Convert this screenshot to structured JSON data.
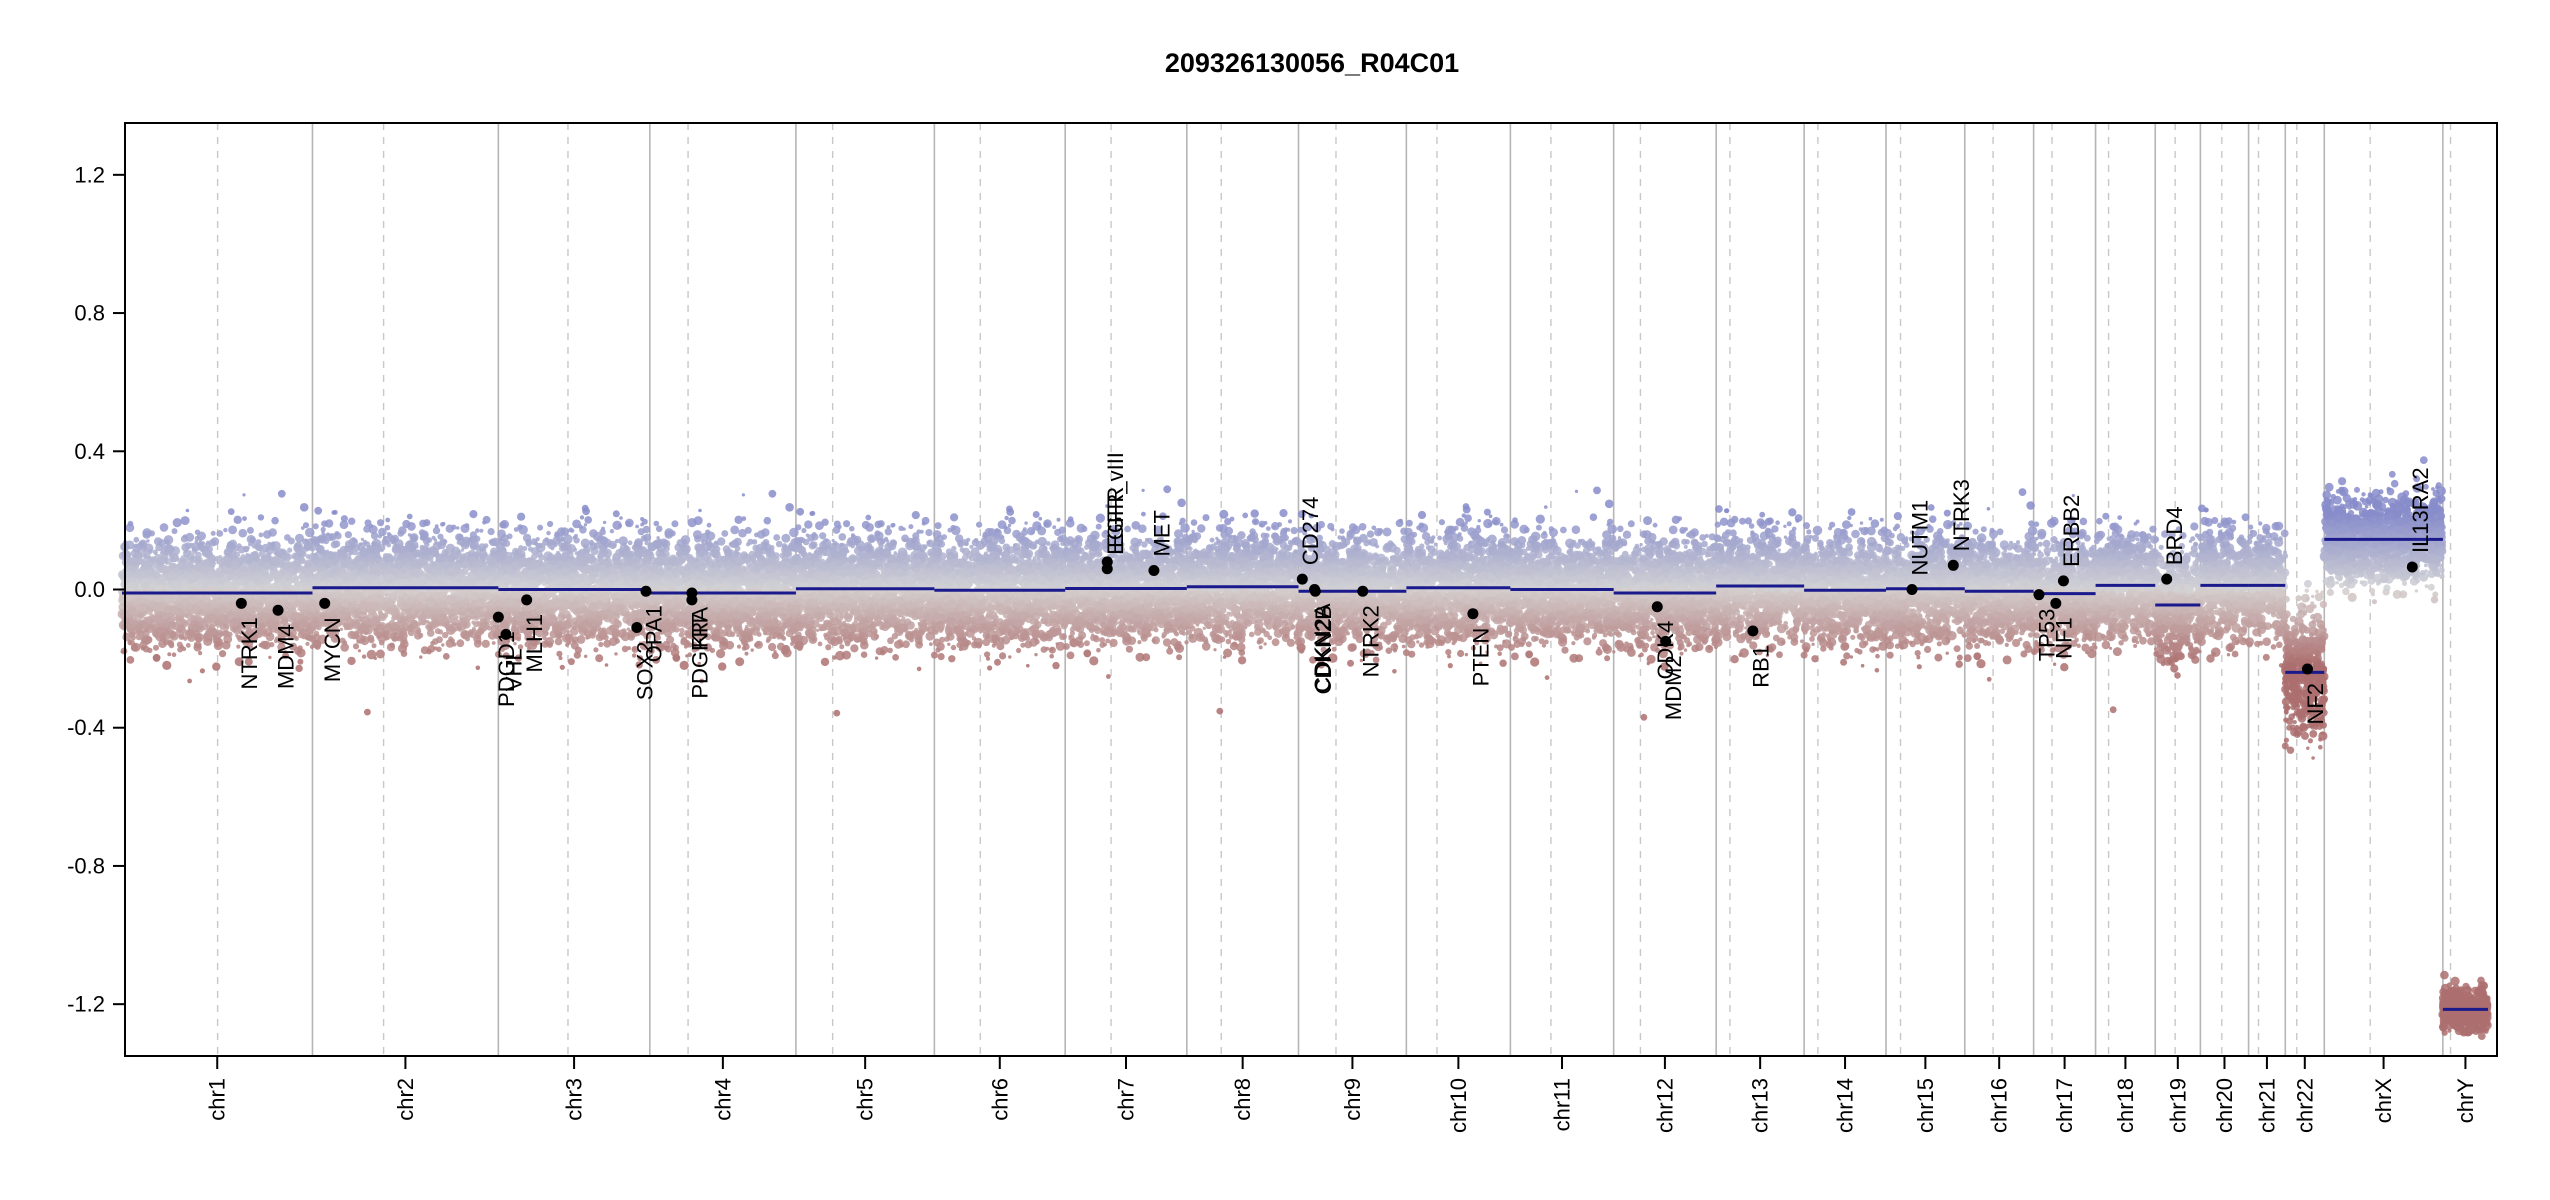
{
  "chart_data": {
    "type": "scatter",
    "title": "209326130056_R04C01",
    "xlabel": "",
    "ylabel": "",
    "ylim": [
      -1.35,
      1.35
    ],
    "yticks": [
      1.2,
      0.8,
      0.4,
      0.0,
      -0.4,
      -0.8,
      -1.2
    ],
    "ytick_labels": [
      "1.2",
      "0.8",
      "0.4",
      "0.0",
      "-0.4",
      "-0.8",
      "-1.2"
    ],
    "x_unit": "genome position (Mb)",
    "grid": false,
    "colors": {
      "gain": "#8f95c4",
      "loss": "#b07c7c",
      "segment": "#1a1a8c",
      "boundary": "#bbbbbb",
      "gene": "#000000"
    },
    "chromosomes": [
      {
        "name": "chr1",
        "length": 249,
        "centromere": 125
      },
      {
        "name": "chr2",
        "length": 243,
        "centromere": 93
      },
      {
        "name": "chr3",
        "length": 198,
        "centromere": 91
      },
      {
        "name": "chr4",
        "length": 191,
        "centromere": 50
      },
      {
        "name": "chr5",
        "length": 181,
        "centromere": 48
      },
      {
        "name": "chr6",
        "length": 171,
        "centromere": 60
      },
      {
        "name": "chr7",
        "length": 159,
        "centromere": 60
      },
      {
        "name": "chr8",
        "length": 146,
        "centromere": 45
      },
      {
        "name": "chr9",
        "length": 141,
        "centromere": 49
      },
      {
        "name": "chr10",
        "length": 136,
        "centromere": 40
      },
      {
        "name": "chr11",
        "length": 135,
        "centromere": 53
      },
      {
        "name": "chr12",
        "length": 134,
        "centromere": 35
      },
      {
        "name": "chr13",
        "length": 115,
        "centromere": 18
      },
      {
        "name": "chr14",
        "length": 107,
        "centromere": 18
      },
      {
        "name": "chr15",
        "length": 103,
        "centromere": 19
      },
      {
        "name": "chr16",
        "length": 90,
        "centromere": 37
      },
      {
        "name": "chr17",
        "length": 81,
        "centromere": 24
      },
      {
        "name": "chr18",
        "length": 78,
        "centromere": 17
      },
      {
        "name": "chr19",
        "length": 59,
        "centromere": 26
      },
      {
        "name": "chr20",
        "length": 63,
        "centromere": 28
      },
      {
        "name": "chr21",
        "length": 48,
        "centromere": 13
      },
      {
        "name": "chr22",
        "length": 51,
        "centromere": 15
      },
      {
        "name": "chrX",
        "length": 155,
        "centromere": 60
      },
      {
        "name": "chrY",
        "length": 59,
        "centromere": 10
      }
    ],
    "series": [
      {
        "type": "segments",
        "values": [
          {
            "chr": "chr1",
            "start": 0,
            "end": 249,
            "value": -0.01
          },
          {
            "chr": "chr2",
            "start": 0,
            "end": 243,
            "value": 0.005
          },
          {
            "chr": "chr3",
            "start": 0,
            "end": 198,
            "value": 0.0
          },
          {
            "chr": "chr4",
            "start": 0,
            "end": 191,
            "value": -0.01
          },
          {
            "chr": "chr5",
            "start": 0,
            "end": 181,
            "value": 0.002
          },
          {
            "chr": "chr6",
            "start": 0,
            "end": 171,
            "value": -0.002
          },
          {
            "chr": "chr7",
            "start": 0,
            "end": 159,
            "value": 0.003
          },
          {
            "chr": "chr8",
            "start": 0,
            "end": 146,
            "value": 0.008
          },
          {
            "chr": "chr9",
            "start": 0,
            "end": 141,
            "value": -0.005
          },
          {
            "chr": "chr10",
            "start": 0,
            "end": 136,
            "value": 0.005
          },
          {
            "chr": "chr11",
            "start": 0,
            "end": 135,
            "value": 0.0
          },
          {
            "chr": "chr12",
            "start": 0,
            "end": 134,
            "value": -0.01
          },
          {
            "chr": "chr13",
            "start": 0,
            "end": 115,
            "value": 0.01
          },
          {
            "chr": "chr14",
            "start": 0,
            "end": 107,
            "value": -0.002
          },
          {
            "chr": "chr15",
            "start": 0,
            "end": 103,
            "value": 0.002
          },
          {
            "chr": "chr16",
            "start": 0,
            "end": 90,
            "value": -0.005
          },
          {
            "chr": "chr17",
            "start": 0,
            "end": 81,
            "value": -0.012
          },
          {
            "chr": "chr18",
            "start": 0,
            "end": 78,
            "value": 0.012
          },
          {
            "chr": "chr19",
            "start": 0,
            "end": 59,
            "value": -0.045
          },
          {
            "chr": "chr20",
            "start": 0,
            "end": 63,
            "value": 0.012
          },
          {
            "chr": "chr21",
            "start": 0,
            "end": 48,
            "value": 0.012
          },
          {
            "chr": "chr22",
            "start": 0,
            "end": 51,
            "value": -0.24
          },
          {
            "chr": "chrX",
            "start": 0,
            "end": 155,
            "value": 0.145
          },
          {
            "chr": "chrY",
            "start": 0,
            "end": 59,
            "value": -1.215
          }
        ]
      }
    ],
    "probe_noise": [
      {
        "chr": "chr1",
        "sd": 0.075
      },
      {
        "chr": "chr2",
        "sd": 0.075
      },
      {
        "chr": "chr3",
        "sd": 0.075
      },
      {
        "chr": "chr4",
        "sd": 0.075
      },
      {
        "chr": "chr5",
        "sd": 0.075
      },
      {
        "chr": "chr6",
        "sd": 0.075
      },
      {
        "chr": "chr7",
        "sd": 0.075
      },
      {
        "chr": "chr8",
        "sd": 0.075
      },
      {
        "chr": "chr9",
        "sd": 0.075
      },
      {
        "chr": "chr10",
        "sd": 0.075
      },
      {
        "chr": "chr11",
        "sd": 0.075
      },
      {
        "chr": "chr12",
        "sd": 0.075
      },
      {
        "chr": "chr13",
        "sd": 0.075
      },
      {
        "chr": "chr14",
        "sd": 0.075
      },
      {
        "chr": "chr15",
        "sd": 0.075
      },
      {
        "chr": "chr16",
        "sd": 0.075
      },
      {
        "chr": "chr17",
        "sd": 0.075
      },
      {
        "chr": "chr18",
        "sd": 0.075
      },
      {
        "chr": "chr19",
        "sd": 0.08
      },
      {
        "chr": "chr20",
        "sd": 0.075
      },
      {
        "chr": "chr21",
        "sd": 0.075
      },
      {
        "chr": "chr22",
        "sd": 0.085
      },
      {
        "chr": "chrX",
        "sd": 0.06
      },
      {
        "chr": "chrY",
        "sd": 0.04
      }
    ],
    "genes": [
      {
        "name": "NTRK1",
        "chr": "chr1",
        "pos": 156,
        "value": -0.04,
        "label_side": "below"
      },
      {
        "name": "MDM4",
        "chr": "chr1",
        "pos": 204,
        "value": -0.06,
        "label_side": "below"
      },
      {
        "name": "MYCN",
        "chr": "chr2",
        "pos": 16,
        "value": -0.04,
        "label_side": "below"
      },
      {
        "name": "PDGD1",
        "chr": "chr3",
        "pos": 0,
        "value": -0.08,
        "label_side": "below"
      },
      {
        "name": "VHL",
        "chr": "chr3",
        "pos": 10,
        "value": -0.13,
        "label_side": "below"
      },
      {
        "name": "MLH1",
        "chr": "chr3",
        "pos": 37,
        "value": -0.03,
        "label_side": "below"
      },
      {
        "name": "SOX2",
        "chr": "chr3",
        "pos": 181,
        "value": -0.11,
        "label_side": "below"
      },
      {
        "name": "OPA1",
        "chr": "chr3",
        "pos": 193,
        "value": -0.005,
        "label_side": "below"
      },
      {
        "name": "PDGFRA",
        "chr": "chr4",
        "pos": 55,
        "value": -0.01,
        "label_side": "below"
      },
      {
        "name": "KIT",
        "chr": "chr4",
        "pos": 55,
        "value": -0.03,
        "label_side": "below"
      },
      {
        "name": "EGFR",
        "chr": "chr7",
        "pos": 55,
        "value": 0.08,
        "label_side": "above"
      },
      {
        "name": "EGFR_vIII",
        "chr": "chr7",
        "pos": 55,
        "value": 0.06,
        "label_side": "above"
      },
      {
        "name": "MET",
        "chr": "chr7",
        "pos": 116,
        "value": 0.055,
        "label_side": "above"
      },
      {
        "name": "CD274",
        "chr": "chr9",
        "pos": 5,
        "value": 0.03,
        "label_side": "above"
      },
      {
        "name": "CDKN2A",
        "chr": "chr9",
        "pos": 21,
        "value": 0.0,
        "label_side": "below"
      },
      {
        "name": "CDKN2B",
        "chr": "chr9",
        "pos": 22,
        "value": -0.005,
        "label_side": "below"
      },
      {
        "name": "NTRK2",
        "chr": "chr9",
        "pos": 84,
        "value": -0.005,
        "label_side": "below"
      },
      {
        "name": "PTEN",
        "chr": "chr10",
        "pos": 87,
        "value": -0.07,
        "label_side": "below"
      },
      {
        "name": "CDK4",
        "chr": "chr12",
        "pos": 57,
        "value": -0.05,
        "label_side": "below"
      },
      {
        "name": "MDM2",
        "chr": "chr12",
        "pos": 68,
        "value": -0.15,
        "label_side": "below"
      },
      {
        "name": "RB1",
        "chr": "chr13",
        "pos": 48,
        "value": -0.12,
        "label_side": "below"
      },
      {
        "name": "NUTM1",
        "chr": "chr15",
        "pos": 34,
        "value": 0.0,
        "label_side": "above"
      },
      {
        "name": "NTRK3",
        "chr": "chr15",
        "pos": 88,
        "value": 0.07,
        "label_side": "above"
      },
      {
        "name": "TP53",
        "chr": "chr17",
        "pos": 7,
        "value": -0.015,
        "label_side": "below"
      },
      {
        "name": "NF1",
        "chr": "chr17",
        "pos": 29,
        "value": -0.04,
        "label_side": "below"
      },
      {
        "name": "ERBB2",
        "chr": "chr17",
        "pos": 39,
        "value": 0.025,
        "label_side": "above"
      },
      {
        "name": "BRD4",
        "chr": "chr19",
        "pos": 15,
        "value": 0.03,
        "label_side": "above"
      },
      {
        "name": "NF2",
        "chr": "chr22",
        "pos": 29,
        "value": -0.23,
        "label_side": "below"
      },
      {
        "name": "IL13RA2",
        "chr": "chrX",
        "pos": 115,
        "value": 0.065,
        "label_side": "above"
      }
    ]
  }
}
